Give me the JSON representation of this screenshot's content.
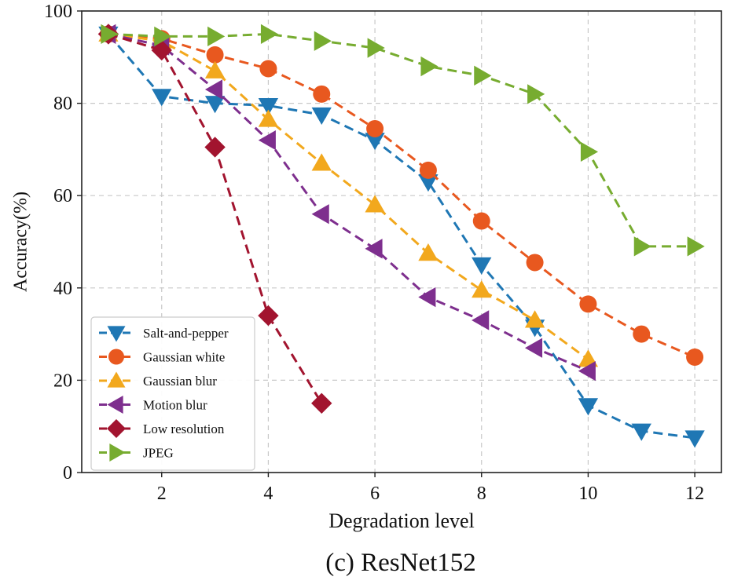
{
  "chart_data": {
    "type": "line",
    "title": "(c) ResNet152",
    "xlabel": "Degradation level",
    "ylabel": "Accuracy(%)",
    "xlim": [
      0.5,
      12.5
    ],
    "ylim": [
      0,
      100
    ],
    "xticks": [
      2,
      4,
      6,
      8,
      10,
      12
    ],
    "yticks": [
      0,
      20,
      40,
      60,
      80,
      100
    ],
    "grid": true,
    "legend_position": "lower-left",
    "series": [
      {
        "name": "Salt-and-pepper",
        "color": "#1f77b4",
        "marker": "triangle-down",
        "x": [
          1,
          2,
          3,
          4,
          5,
          6,
          7,
          8,
          9,
          10,
          11,
          12
        ],
        "y": [
          95,
          81.5,
          80,
          79.5,
          77.5,
          72,
          63,
          45,
          31.5,
          14.5,
          9,
          7.5
        ]
      },
      {
        "name": "Gaussian white",
        "color": "#e8581f",
        "marker": "circle",
        "x": [
          1,
          2,
          3,
          4,
          5,
          6,
          7,
          8,
          9,
          10,
          11,
          12
        ],
        "y": [
          95,
          94,
          90.5,
          87.5,
          82,
          74.5,
          65.5,
          54.5,
          45.5,
          36.5,
          30,
          25
        ]
      },
      {
        "name": "Gaussian blur",
        "color": "#f2a81d",
        "marker": "triangle-up",
        "x": [
          1,
          2,
          3,
          4,
          5,
          6,
          7,
          8,
          9,
          10
        ],
        "y": [
          95,
          93.5,
          87,
          76.5,
          67,
          58,
          47.5,
          39.5,
          33,
          24.5
        ]
      },
      {
        "name": "Motion blur",
        "color": "#7e2f8e",
        "marker": "triangle-left",
        "x": [
          1,
          2,
          3,
          4,
          5,
          6,
          7,
          8,
          9,
          10
        ],
        "y": [
          95,
          92.5,
          83,
          72,
          56,
          48.5,
          38,
          33,
          27,
          22
        ]
      },
      {
        "name": "Low resolution",
        "color": "#a2142f",
        "marker": "diamond",
        "x": [
          1,
          2,
          3,
          4,
          5
        ],
        "y": [
          95,
          91.5,
          70.5,
          34,
          15
        ]
      },
      {
        "name": "JPEG",
        "color": "#77ac30",
        "marker": "triangle-right",
        "x": [
          1,
          2,
          3,
          4,
          5,
          6,
          7,
          8,
          9,
          10,
          11,
          12
        ],
        "y": [
          95,
          94.5,
          94.5,
          95,
          93.5,
          92,
          88,
          86,
          82,
          69.5,
          49,
          49
        ]
      }
    ]
  }
}
